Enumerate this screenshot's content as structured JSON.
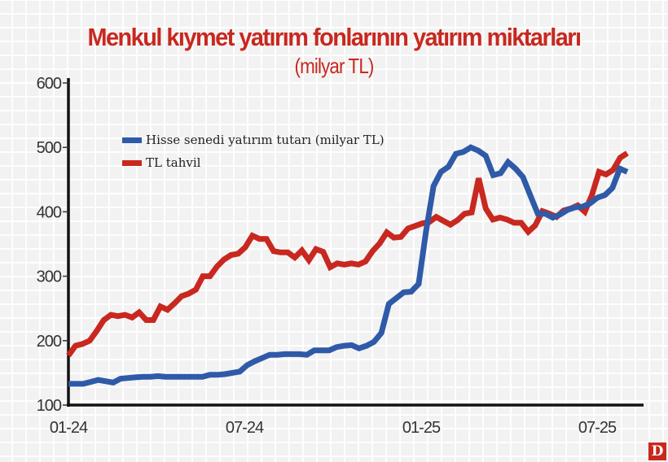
{
  "chart_data": {
    "type": "line",
    "title": "Menkul kıymet yatırım fonlarının yatırım miktarları",
    "subtitle": "(milyar TL)",
    "xlabel": "",
    "ylabel": "",
    "ylim": [
      100,
      600
    ],
    "yticks": [
      "600",
      "500",
      "400",
      "300",
      "200",
      "100"
    ],
    "xticks": [
      "01-24",
      "07-24",
      "01-25",
      "07-25"
    ],
    "grid": true,
    "legend_position": "upper-left",
    "series": [
      {
        "name": "Hisse senedi yatırım tutarı (milyar TL)",
        "color": "#2f5aa8",
        "values": [
          133,
          133,
          133,
          136,
          139,
          137,
          135,
          141,
          142,
          143,
          144,
          144,
          145,
          144,
          144,
          144,
          144,
          144,
          144,
          147,
          147,
          148,
          150,
          152,
          162,
          168,
          173,
          178,
          178,
          179,
          179,
          179,
          178,
          185,
          185,
          185,
          190,
          192,
          193,
          188,
          192,
          198,
          212,
          257,
          266,
          275,
          276,
          288,
          370,
          440,
          462,
          470,
          490,
          493,
          500,
          495,
          487,
          457,
          460,
          477,
          467,
          454,
          425,
          397,
          397,
          391,
          396,
          403,
          407,
          408,
          413,
          422,
          426,
          437,
          467,
          462
        ]
      },
      {
        "name": "TL tahvil",
        "color": "#c8281f",
        "values": [
          177,
          192,
          195,
          200,
          215,
          232,
          240,
          238,
          240,
          236,
          244,
          232,
          232,
          253,
          248,
          258,
          269,
          273,
          279,
          300,
          300,
          315,
          326,
          333,
          335,
          345,
          363,
          358,
          358,
          339,
          337,
          337,
          329,
          340,
          325,
          342,
          338,
          314,
          320,
          318,
          320,
          318,
          323,
          339,
          351,
          368,
          360,
          361,
          374,
          378,
          382,
          384,
          392,
          386,
          380,
          387,
          397,
          399,
          452,
          405,
          388,
          391,
          388,
          383,
          383,
          369,
          379,
          401,
          397,
          392,
          402,
          405,
          410,
          400,
          426,
          462,
          458,
          465,
          484,
          491
        ]
      }
    ]
  },
  "legend": {
    "items": [
      {
        "label": "Hisse senedi yatırım tutarı (milyar TL)",
        "color": "#2f5aa8"
      },
      {
        "label": "TL tahvil",
        "color": "#c8281f"
      }
    ]
  },
  "brand": {
    "logo_letter": "D",
    "color": "#c8281f"
  }
}
